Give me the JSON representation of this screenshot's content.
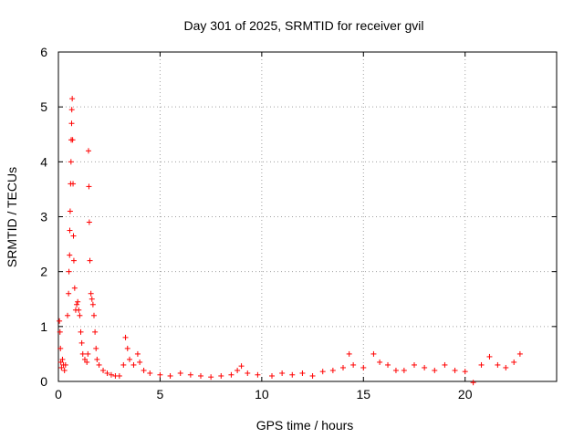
{
  "chart_data": {
    "type": "scatter",
    "title": "Day 301 of 2025, SRMTID for receiver gvil",
    "xlabel": "GPS time / hours",
    "ylabel": "SRMTID / TECUs",
    "xlim": [
      0,
      24.5
    ],
    "ylim": [
      0,
      6
    ],
    "xticks": [
      "0",
      "5",
      "10",
      "15",
      "20"
    ],
    "yticks": [
      "0",
      "1",
      "2",
      "3",
      "4",
      "5",
      "6"
    ],
    "grid": true,
    "marker": "plus",
    "color": "#ff0000",
    "series": [
      {
        "name": "SRMTID",
        "points": [
          [
            0.05,
            1.1
          ],
          [
            0.08,
            0.9
          ],
          [
            0.1,
            0.6
          ],
          [
            0.12,
            0.35
          ],
          [
            0.15,
            0.25
          ],
          [
            0.2,
            0.4
          ],
          [
            0.25,
            0.3
          ],
          [
            0.3,
            0.2
          ],
          [
            0.35,
            0.3
          ],
          [
            0.45,
            1.2
          ],
          [
            0.5,
            1.6
          ],
          [
            0.52,
            2.0
          ],
          [
            0.55,
            2.3
          ],
          [
            0.56,
            2.75
          ],
          [
            0.58,
            3.1
          ],
          [
            0.6,
            3.6
          ],
          [
            0.62,
            4.0
          ],
          [
            0.63,
            4.4
          ],
          [
            0.65,
            4.7
          ],
          [
            0.66,
            4.95
          ],
          [
            0.68,
            5.15
          ],
          [
            0.7,
            4.4
          ],
          [
            0.72,
            3.6
          ],
          [
            0.74,
            2.65
          ],
          [
            0.76,
            2.2
          ],
          [
            0.8,
            1.7
          ],
          [
            0.85,
            1.3
          ],
          [
            0.9,
            1.4
          ],
          [
            0.95,
            1.45
          ],
          [
            1.0,
            1.3
          ],
          [
            1.05,
            1.2
          ],
          [
            1.1,
            0.9
          ],
          [
            1.15,
            0.7
          ],
          [
            1.2,
            0.5
          ],
          [
            1.3,
            0.4
          ],
          [
            1.4,
            0.35
          ],
          [
            1.45,
            0.5
          ],
          [
            1.48,
            4.2
          ],
          [
            1.5,
            3.55
          ],
          [
            1.52,
            2.9
          ],
          [
            1.55,
            2.2
          ],
          [
            1.6,
            1.6
          ],
          [
            1.65,
            1.5
          ],
          [
            1.7,
            1.4
          ],
          [
            1.75,
            1.2
          ],
          [
            1.8,
            0.9
          ],
          [
            1.85,
            0.6
          ],
          [
            1.9,
            0.4
          ],
          [
            2.0,
            0.3
          ],
          [
            2.2,
            0.2
          ],
          [
            2.4,
            0.15
          ],
          [
            2.6,
            0.12
          ],
          [
            2.8,
            0.1
          ],
          [
            3.0,
            0.1
          ],
          [
            3.2,
            0.3
          ],
          [
            3.3,
            0.8
          ],
          [
            3.4,
            0.6
          ],
          [
            3.5,
            0.4
          ],
          [
            3.7,
            0.3
          ],
          [
            3.9,
            0.5
          ],
          [
            4.0,
            0.35
          ],
          [
            4.2,
            0.2
          ],
          [
            4.5,
            0.15
          ],
          [
            5.0,
            0.12
          ],
          [
            5.5,
            0.1
          ],
          [
            6.0,
            0.15
          ],
          [
            6.5,
            0.12
          ],
          [
            7.0,
            0.1
          ],
          [
            7.5,
            0.08
          ],
          [
            8.0,
            0.1
          ],
          [
            8.5,
            0.12
          ],
          [
            8.8,
            0.2
          ],
          [
            9.0,
            0.28
          ],
          [
            9.3,
            0.15
          ],
          [
            9.8,
            0.12
          ],
          [
            10.5,
            0.1
          ],
          [
            11.0,
            0.15
          ],
          [
            11.5,
            0.12
          ],
          [
            12.0,
            0.15
          ],
          [
            12.5,
            0.1
          ],
          [
            13.0,
            0.18
          ],
          [
            13.5,
            0.2
          ],
          [
            14.0,
            0.25
          ],
          [
            14.3,
            0.5
          ],
          [
            14.5,
            0.3
          ],
          [
            15.0,
            0.25
          ],
          [
            15.5,
            0.5
          ],
          [
            15.8,
            0.35
          ],
          [
            16.2,
            0.3
          ],
          [
            16.6,
            0.2
          ],
          [
            17.0,
            0.2
          ],
          [
            17.5,
            0.3
          ],
          [
            18.0,
            0.25
          ],
          [
            18.5,
            0.2
          ],
          [
            19.0,
            0.3
          ],
          [
            19.5,
            0.2
          ],
          [
            20.0,
            0.18
          ],
          [
            20.4,
            -0.02
          ],
          [
            20.8,
            0.3
          ],
          [
            21.2,
            0.45
          ],
          [
            21.6,
            0.3
          ],
          [
            22.0,
            0.25
          ],
          [
            22.4,
            0.35
          ],
          [
            22.7,
            0.5
          ]
        ]
      }
    ]
  }
}
